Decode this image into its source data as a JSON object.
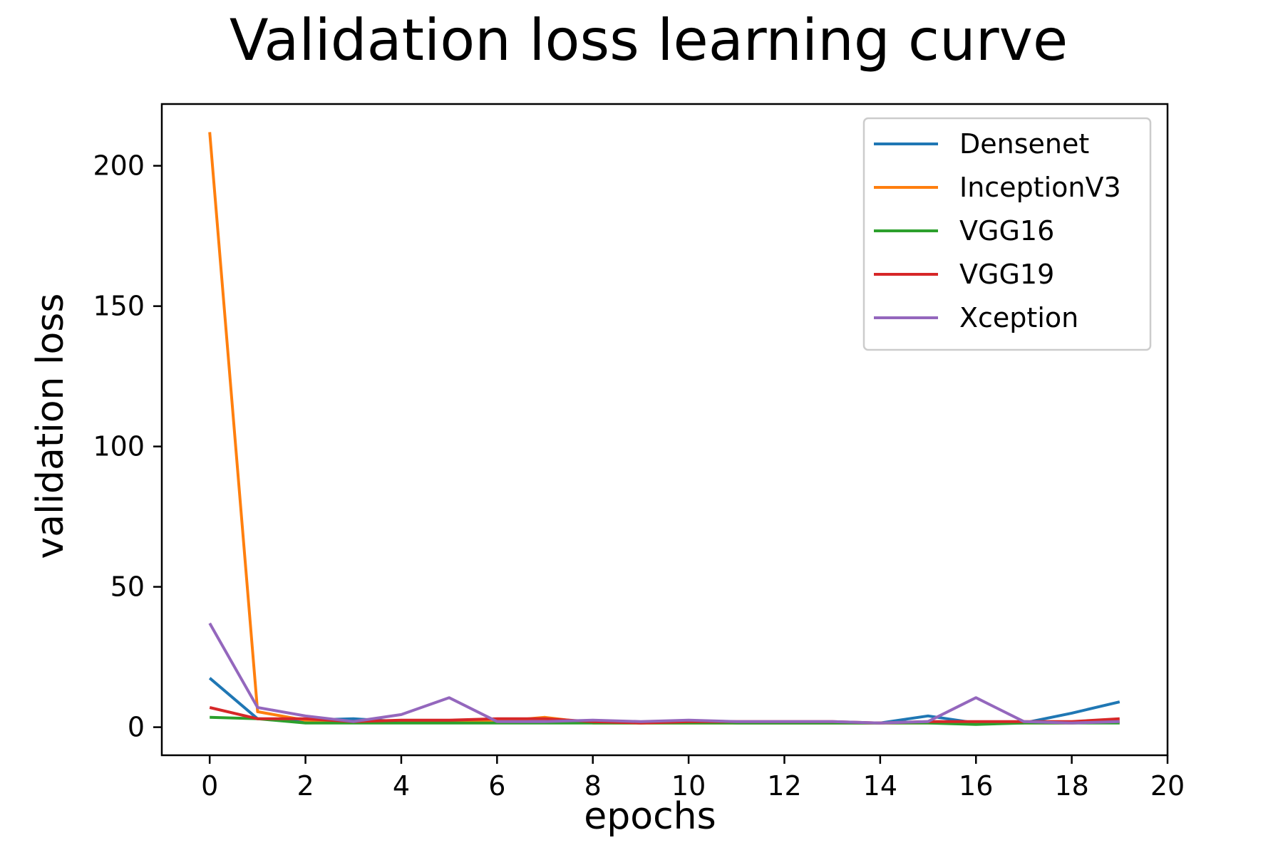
{
  "chart_data": {
    "type": "line",
    "title": "Validation loss learning curve",
    "xlabel": "epochs",
    "ylabel": "validation loss",
    "xlim": [
      -1,
      20
    ],
    "ylim": [
      -10,
      222
    ],
    "xticks": [
      0,
      2,
      4,
      6,
      8,
      10,
      12,
      14,
      16,
      18,
      20
    ],
    "yticks": [
      0,
      50,
      100,
      150,
      200
    ],
    "grid": false,
    "legend_position": "top-right",
    "x": [
      0,
      1,
      2,
      3,
      4,
      5,
      6,
      7,
      8,
      9,
      10,
      11,
      12,
      13,
      14,
      15,
      16,
      17,
      18,
      19
    ],
    "series": [
      {
        "name": "Densenet",
        "color": "#1f77b4",
        "values": [
          17.5,
          3.0,
          2.5,
          3.0,
          2.0,
          2.0,
          2.0,
          2.0,
          2.0,
          1.5,
          2.0,
          1.5,
          1.5,
          1.5,
          1.5,
          4.0,
          1.5,
          1.5,
          5.0,
          9.0
        ]
      },
      {
        "name": "InceptionV3",
        "color": "#ff7f0e",
        "values": [
          212.0,
          5.5,
          2.5,
          2.0,
          2.0,
          2.0,
          2.0,
          3.5,
          1.5,
          1.5,
          1.5,
          1.5,
          1.5,
          1.5,
          1.5,
          1.5,
          1.5,
          1.5,
          1.5,
          2.0
        ]
      },
      {
        "name": "VGG16",
        "color": "#2ca02c",
        "values": [
          3.5,
          3.0,
          1.5,
          1.5,
          1.5,
          1.5,
          1.5,
          1.5,
          1.5,
          1.5,
          1.5,
          1.5,
          1.5,
          1.5,
          1.5,
          1.5,
          1.0,
          1.5,
          1.5,
          1.5
        ]
      },
      {
        "name": "VGG19",
        "color": "#d62728",
        "values": [
          7.0,
          3.0,
          3.0,
          2.0,
          2.5,
          2.5,
          3.0,
          3.0,
          2.0,
          1.5,
          2.0,
          2.0,
          2.0,
          2.0,
          1.5,
          2.0,
          2.0,
          2.0,
          2.0,
          3.0
        ]
      },
      {
        "name": "Xception",
        "color": "#9467bd",
        "values": [
          37.0,
          7.0,
          4.0,
          2.0,
          4.5,
          10.5,
          2.0,
          2.0,
          2.5,
          2.0,
          2.5,
          2.0,
          2.0,
          2.0,
          1.5,
          2.0,
          10.5,
          2.0,
          1.5,
          2.0
        ]
      }
    ]
  }
}
